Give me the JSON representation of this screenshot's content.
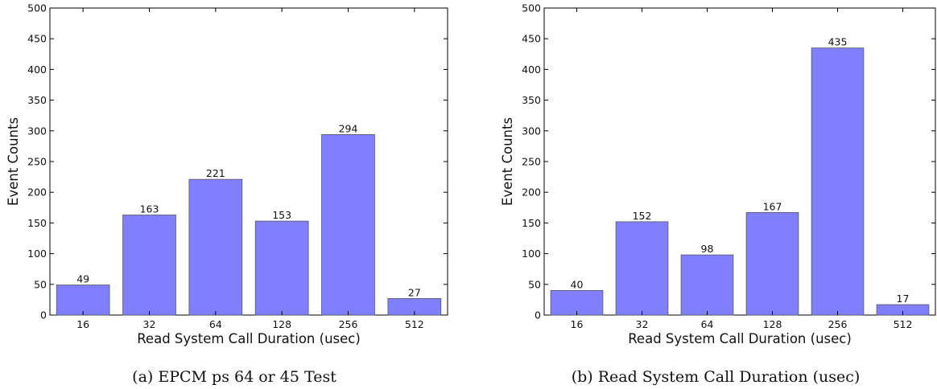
{
  "chart_data": [
    {
      "type": "bar",
      "categories": [
        "16",
        "32",
        "64",
        "128",
        "256",
        "512"
      ],
      "values": [
        49,
        163,
        221,
        153,
        294,
        27
      ],
      "xlabel": "Read System Call Duration (usec)",
      "ylabel": "Event Counts",
      "ylim": [
        0,
        500
      ],
      "yticks": [
        0,
        50,
        100,
        150,
        200,
        250,
        300,
        350,
        400,
        450,
        500
      ],
      "caption": "(a) EPCM ps 64 or 45 Test",
      "bar_color": "#8080ff",
      "grid": false
    },
    {
      "type": "bar",
      "categories": [
        "16",
        "32",
        "64",
        "128",
        "256",
        "512"
      ],
      "values": [
        40,
        152,
        98,
        167,
        435,
        17
      ],
      "xlabel": "Read System Call Duration (usec)",
      "ylabel": "Event Counts",
      "ylim": [
        0,
        500
      ],
      "yticks": [
        0,
        50,
        100,
        150,
        200,
        250,
        300,
        350,
        400,
        450,
        500
      ],
      "caption": "(b) Read System Call Duration (usec)",
      "bar_color": "#8080ff",
      "grid": false
    }
  ]
}
